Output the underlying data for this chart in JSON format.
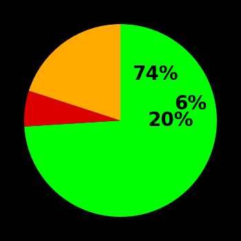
{
  "slices": [
    74,
    6,
    20
  ],
  "colors": [
    "#00ff00",
    "#dd0000",
    "#ffaa00"
  ],
  "labels": [
    "74%",
    "6%",
    "20%"
  ],
  "label_radii": [
    0.6,
    0.75,
    0.52
  ],
  "label_offsets_deg": [
    0,
    0,
    0
  ],
  "background_color": "#000000",
  "startangle": 90,
  "counterclock": false,
  "figsize": [
    3.5,
    3.5
  ],
  "dpi": 100,
  "label_fontsize": 20
}
